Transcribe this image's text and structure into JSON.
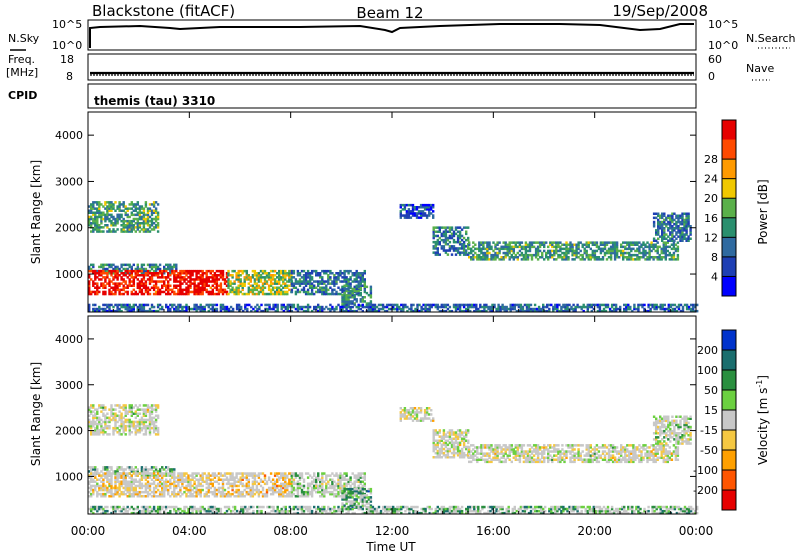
{
  "header": {
    "station": "Blackstone (fitACF)",
    "beam": "Beam 12",
    "date": "19/Sep/2008"
  },
  "top_panels": {
    "nsky": {
      "left_label": "N.Sky",
      "left_ticks": [
        "10^5",
        "10^0"
      ],
      "right_ticks": [
        "10^5",
        "10^0"
      ],
      "right_label": "N.Search"
    },
    "freq": {
      "left_label_1": "Freq.",
      "left_label_2": "[MHz]",
      "left_ticks": [
        "18",
        "8"
      ],
      "right_ticks": [
        "60",
        "0"
      ],
      "right_label": "Nave"
    },
    "cpid": {
      "label": "CPID",
      "value": "themis (tau) 3310"
    }
  },
  "chart_data": [
    {
      "type": "heatmap",
      "title": "",
      "xlabel": "Time UT",
      "ylabel": "Slant Range [km]",
      "xlim": [
        0,
        24
      ],
      "ylim": [
        180,
        4500
      ],
      "x_ticks": [
        "00:00",
        "04:00",
        "08:00",
        "12:00",
        "16:00",
        "20:00",
        "00:00"
      ],
      "y_ticks": [
        "1000",
        "2000",
        "3000",
        "4000"
      ],
      "colorbar": {
        "label": "Power [dB]",
        "ticks": [
          "4",
          "8",
          "12",
          "16",
          "20",
          "24",
          "28"
        ],
        "colors": [
          "#0000ff",
          "#1e3fb4",
          "#2f6aa0",
          "#2a8f6e",
          "#5ab04a",
          "#f0c800",
          "#ff9a00",
          "#ff4a00",
          "#e60000"
        ]
      },
      "regions": [
        {
          "t0": 0.0,
          "t1": 2.8,
          "r0": 1900,
          "r1": 2550,
          "level": 0.42
        },
        {
          "t0": 0.0,
          "t1": 3.5,
          "r0": 1000,
          "r1": 1200,
          "level": 0.35
        },
        {
          "t0": 0.0,
          "t1": 5.5,
          "r0": 550,
          "r1": 1050,
          "level": 0.95
        },
        {
          "t0": 5.5,
          "t1": 8.0,
          "r0": 550,
          "r1": 1050,
          "level": 0.55
        },
        {
          "t0": 8.0,
          "t1": 10.9,
          "r0": 550,
          "r1": 1050,
          "level": 0.3
        },
        {
          "t0": 10.0,
          "t1": 11.2,
          "r0": 300,
          "r1": 750,
          "level": 0.35
        },
        {
          "t0": 0.0,
          "t1": 24.0,
          "r0": 180,
          "r1": 320,
          "level": 0.25
        },
        {
          "t0": 12.3,
          "t1": 13.6,
          "r0": 2200,
          "r1": 2500,
          "level": 0.2
        },
        {
          "t0": 13.6,
          "t1": 15.0,
          "r0": 1400,
          "r1": 2000,
          "level": 0.3
        },
        {
          "t0": 15.0,
          "t1": 23.3,
          "r0": 1300,
          "r1": 1700,
          "level": 0.4
        },
        {
          "t0": 22.3,
          "t1": 23.8,
          "r0": 1700,
          "r1": 2300,
          "level": 0.3
        }
      ]
    },
    {
      "type": "heatmap",
      "title": "",
      "xlabel": "Time UT",
      "ylabel": "Slant Range [km]",
      "xlim": [
        0,
        24
      ],
      "ylim": [
        180,
        4500
      ],
      "x_ticks": [
        "00:00",
        "04:00",
        "08:00",
        "12:00",
        "16:00",
        "20:00",
        "00:00"
      ],
      "y_ticks": [
        "1000",
        "2000",
        "3000",
        "4000"
      ],
      "colorbar": {
        "label_main": "Velocity [m s",
        "label_sup": "-1",
        "label_end": "]",
        "ticks": [
          "200",
          "100",
          "50",
          "15",
          "-15",
          "-50",
          "-100",
          "-200"
        ],
        "colors": [
          "#0033cc",
          "#1a6e6e",
          "#2a8f3f",
          "#6cd040",
          "#c8c8c8",
          "#f5c842",
          "#ffa000",
          "#ff5500",
          "#e60000"
        ]
      },
      "regions": [
        {
          "t0": 0.0,
          "t1": 2.8,
          "r0": 1900,
          "r1": 2550,
          "level": 0.5
        },
        {
          "t0": 0.0,
          "t1": 3.5,
          "r0": 1000,
          "r1": 1200,
          "level": 0.7
        },
        {
          "t0": 0.0,
          "t1": 5.5,
          "r0": 550,
          "r1": 1050,
          "level": 0.4
        },
        {
          "t0": 5.5,
          "t1": 8.0,
          "r0": 550,
          "r1": 1050,
          "level": 0.38
        },
        {
          "t0": 8.0,
          "t1": 10.9,
          "r0": 550,
          "r1": 1050,
          "level": 0.6
        },
        {
          "t0": 10.0,
          "t1": 11.2,
          "r0": 300,
          "r1": 750,
          "level": 0.72
        },
        {
          "t0": 0.0,
          "t1": 24.0,
          "r0": 180,
          "r1": 320,
          "level": 0.7
        },
        {
          "t0": 12.3,
          "t1": 13.6,
          "r0": 2200,
          "r1": 2500,
          "level": 0.5
        },
        {
          "t0": 13.6,
          "t1": 15.0,
          "r0": 1400,
          "r1": 2000,
          "level": 0.5
        },
        {
          "t0": 15.0,
          "t1": 23.3,
          "r0": 1300,
          "r1": 1700,
          "level": 0.5
        },
        {
          "t0": 22.3,
          "t1": 23.8,
          "r0": 1700,
          "r1": 2300,
          "level": 0.55
        }
      ]
    }
  ]
}
